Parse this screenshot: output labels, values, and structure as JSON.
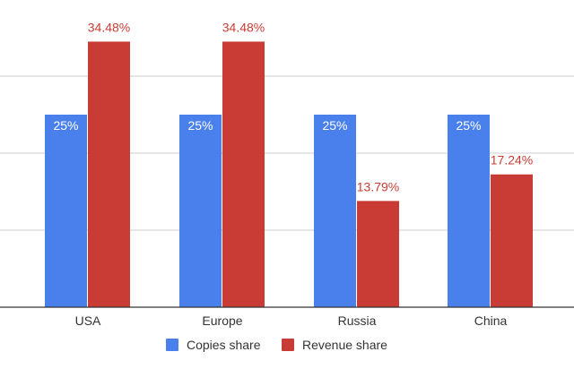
{
  "chart_data": {
    "type": "bar",
    "title": "",
    "xlabel": "",
    "ylabel": "",
    "ylim": [
      0,
      40
    ],
    "grid": true,
    "legend": "bottom",
    "categories": [
      "USA",
      "Europe",
      "Russia",
      "China"
    ],
    "series": [
      {
        "name": "Copies share",
        "color": "#4a80ec",
        "values": [
          25,
          25,
          25,
          25
        ],
        "labels": [
          "25%",
          "25%",
          "25%",
          "25%"
        ],
        "label_position": "inside"
      },
      {
        "name": "Revenue share",
        "color": "#c83c35",
        "values": [
          34.48,
          34.48,
          13.79,
          17.24
        ],
        "labels": [
          "34.48%",
          "34.48%",
          "13.79%",
          "17.24%"
        ],
        "label_position": "outside"
      }
    ]
  }
}
